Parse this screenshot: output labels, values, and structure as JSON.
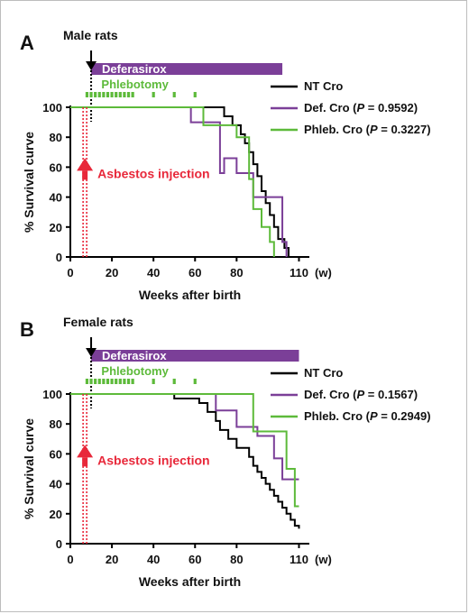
{
  "colors": {
    "nt": "#000000",
    "def": "#7b3f98",
    "phleb": "#5dba3a",
    "asbestos": "#e8283a",
    "axis": "#000000"
  },
  "labels": {
    "deferasirox": "Deferasirox",
    "phlebotomy": "Phlebotomy",
    "asbestos": "Asbestos injection",
    "week_unit": "(w)"
  },
  "chart_data": [
    {
      "panel": "A",
      "type": "line",
      "title": "Male rats",
      "xlabel": "Weeks after birth",
      "ylabel": "% Survival curve",
      "xlim": [
        0,
        115
      ],
      "ylim": [
        0,
        100
      ],
      "xticks": [
        0,
        20,
        40,
        60,
        80,
        110
      ],
      "yticks": [
        0,
        20,
        40,
        60,
        80,
        100
      ],
      "legend": [
        {
          "key": "nt",
          "prefix": "NT Cro",
          "p_value": ""
        },
        {
          "key": "def",
          "prefix": "Def. Cro (",
          "p_value": " = 0.9592)"
        },
        {
          "key": "phleb",
          "prefix": "Phleb. Cro (",
          "p_value": " = 0.3227)"
        }
      ],
      "deferasirox_range": [
        10,
        102
      ],
      "phlebotomy_weeks": [
        8,
        10,
        12,
        14,
        16,
        18,
        20,
        22,
        24,
        26,
        28,
        30,
        40,
        50,
        60
      ],
      "asbestos_week": 7,
      "series": [
        {
          "key": "nt",
          "name": "NT Cro",
          "x": [
            0,
            62,
            74,
            78,
            82,
            84,
            86,
            88,
            90,
            92,
            94,
            96,
            98,
            100,
            103,
            105
          ],
          "y": [
            100,
            100,
            94,
            88,
            82,
            76,
            70,
            62,
            54,
            44,
            36,
            28,
            20,
            12,
            6,
            0
          ]
        },
        {
          "key": "def",
          "name": "Def. Cro",
          "x": [
            0,
            56,
            58,
            70,
            72,
            74,
            80,
            86,
            88,
            94,
            102,
            104
          ],
          "y": [
            100,
            100,
            90,
            90,
            56,
            66,
            56,
            56,
            40,
            40,
            10,
            0
          ]
        },
        {
          "key": "phleb",
          "name": "Phleb. Cro",
          "x": [
            0,
            58,
            64,
            78,
            80,
            84,
            86,
            88,
            92,
            96,
            98
          ],
          "y": [
            100,
            100,
            88,
            88,
            80,
            80,
            52,
            32,
            20,
            10,
            0
          ]
        }
      ]
    },
    {
      "panel": "B",
      "type": "line",
      "title": "Female rats",
      "xlabel": "Weeks after birth",
      "ylabel": "% Survival curve",
      "xlim": [
        0,
        115
      ],
      "ylim": [
        0,
        100
      ],
      "xticks": [
        0,
        20,
        40,
        60,
        80,
        110
      ],
      "yticks": [
        0,
        20,
        40,
        60,
        80,
        100
      ],
      "legend": [
        {
          "key": "nt",
          "prefix": "NT Cro",
          "p_value": ""
        },
        {
          "key": "def",
          "prefix": "Def. Cro (",
          "p_value": " = 0.1567)"
        },
        {
          "key": "phleb",
          "prefix": "Phleb. Cro (",
          "p_value": " = 0.2949)"
        }
      ],
      "deferasirox_range": [
        10,
        110
      ],
      "phlebotomy_weeks": [
        8,
        10,
        12,
        14,
        16,
        18,
        20,
        22,
        24,
        26,
        28,
        30,
        40,
        50,
        60
      ],
      "asbestos_week": 7,
      "series": [
        {
          "key": "nt",
          "name": "NT Cro",
          "x": [
            0,
            50,
            62,
            66,
            70,
            72,
            76,
            80,
            86,
            88,
            90,
            92,
            94,
            96,
            98,
            100,
            102,
            104,
            106,
            108,
            110
          ],
          "y": [
            100,
            97,
            94,
            88,
            82,
            76,
            70,
            64,
            58,
            52,
            48,
            44,
            40,
            36,
            32,
            28,
            24,
            20,
            16,
            12,
            10
          ]
        },
        {
          "key": "def",
          "name": "Def. Cro",
          "x": [
            0,
            64,
            70,
            80,
            90,
            98,
            102,
            110
          ],
          "y": [
            100,
            100,
            89,
            78,
            72,
            57,
            43,
            43
          ]
        },
        {
          "key": "phleb",
          "name": "Phleb. Cro",
          "x": [
            0,
            84,
            88,
            96,
            104,
            108,
            110
          ],
          "y": [
            100,
            100,
            75,
            75,
            50,
            25,
            25
          ]
        }
      ]
    }
  ]
}
